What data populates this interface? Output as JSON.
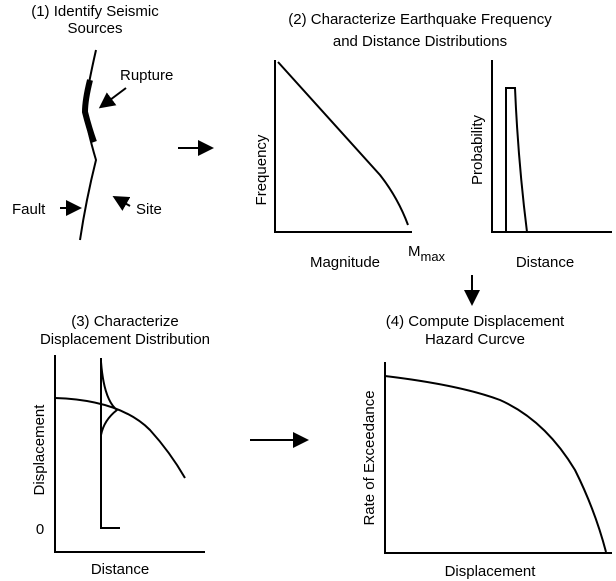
{
  "panels": [
    {
      "title": [
        "(1) Identify Seismic",
        "Sources"
      ],
      "labels": [
        "Rupture",
        "Fault",
        "Site"
      ]
    },
    {
      "title": [
        "(2) Characterize Earthquake Frequency",
        "and Distance Distributions"
      ],
      "plots": [
        {
          "x_label": "Magnitude",
          "y_label": "Frequency",
          "x_end": "M",
          "x_end_sub": "max"
        },
        {
          "x_label": "Distance",
          "y_label": "Probability"
        }
      ]
    },
    {
      "title": [
        "(3) Characterize",
        "Displacement Distribution"
      ],
      "x_label": "Distance",
      "y_label": "Displacement",
      "y_origin": "0"
    },
    {
      "title": [
        "(4) Compute Displacement",
        "Hazard Curcve"
      ],
      "x_label": "Displacement",
      "y_label": "Rate of Exceedance"
    }
  ]
}
